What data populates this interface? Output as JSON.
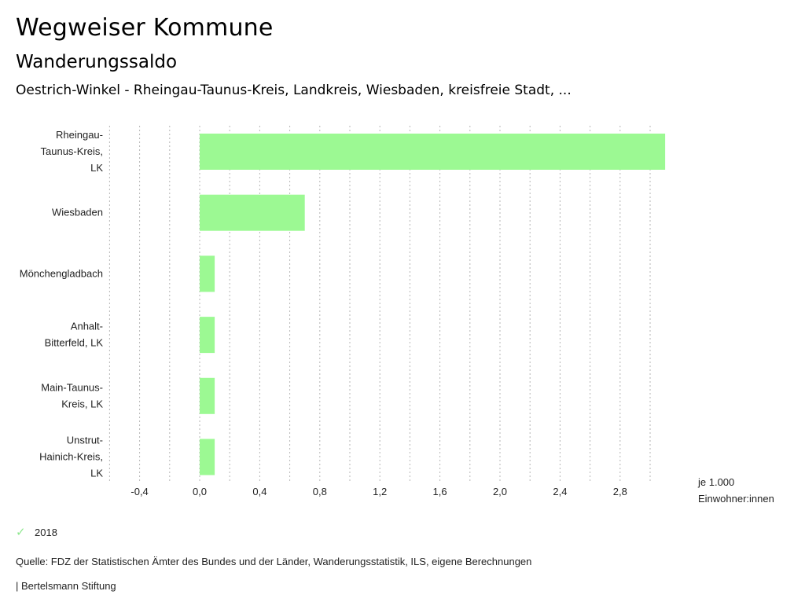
{
  "header": {
    "title": "Wegweiser Kommune",
    "subtitle": "Wanderungssaldo",
    "context": "Oestrich-Winkel - Rheingau-Taunus-Kreis, Landkreis, Wiesbaden, kreisfreie Stadt, ..."
  },
  "legend": {
    "items": [
      {
        "label": "2018",
        "icon": "check-icon",
        "color": "#9cf993"
      }
    ]
  },
  "footer": {
    "source": "Quelle: FDZ der Statistischen Ämter des Bundes und der Länder, Wanderungsstatistik, ILS, eigene Berechnungen",
    "brand": "| Bertelsmann Stiftung"
  },
  "chart_data": {
    "type": "bar",
    "orientation": "horizontal",
    "title": "Wanderungssaldo",
    "categories": [
      [
        "Rheingau-",
        "Taunus-Kreis,",
        "LK"
      ],
      [
        "Wiesbaden"
      ],
      [
        "Mönchengladbach"
      ],
      [
        "Anhalt-",
        "Bitterfeld, LK"
      ],
      [
        "Main-Taunus-",
        "Kreis, LK"
      ],
      [
        "Unstrut-",
        "Hainich-Kreis,",
        "LK"
      ]
    ],
    "series": [
      {
        "name": "2018",
        "color": "#9cf993",
        "values": [
          3.1,
          0.7,
          0.1,
          0.1,
          0.1,
          0.1
        ]
      }
    ],
    "xlim": [
      -0.6,
      3.1
    ],
    "xticks": [
      -0.4,
      0.0,
      0.4,
      0.8,
      1.2,
      1.6,
      2.0,
      2.4,
      2.8
    ],
    "xtick_labels": [
      "-0,4",
      "0,0",
      "0,4",
      "0,8",
      "1,2",
      "1,6",
      "2,0",
      "2,4",
      "2,8"
    ],
    "gridlines": [
      -0.6,
      -0.4,
      -0.2,
      0.0,
      0.2,
      0.4,
      0.6,
      0.8,
      1.0,
      1.2,
      1.4,
      1.6,
      1.8,
      2.0,
      2.2,
      2.4,
      2.6,
      2.8,
      3.0
    ],
    "grid": true,
    "xlabel": [
      "je 1.000",
      "Einwohner:innen"
    ],
    "ylabel": "",
    "legend_position": "bottom-left"
  }
}
